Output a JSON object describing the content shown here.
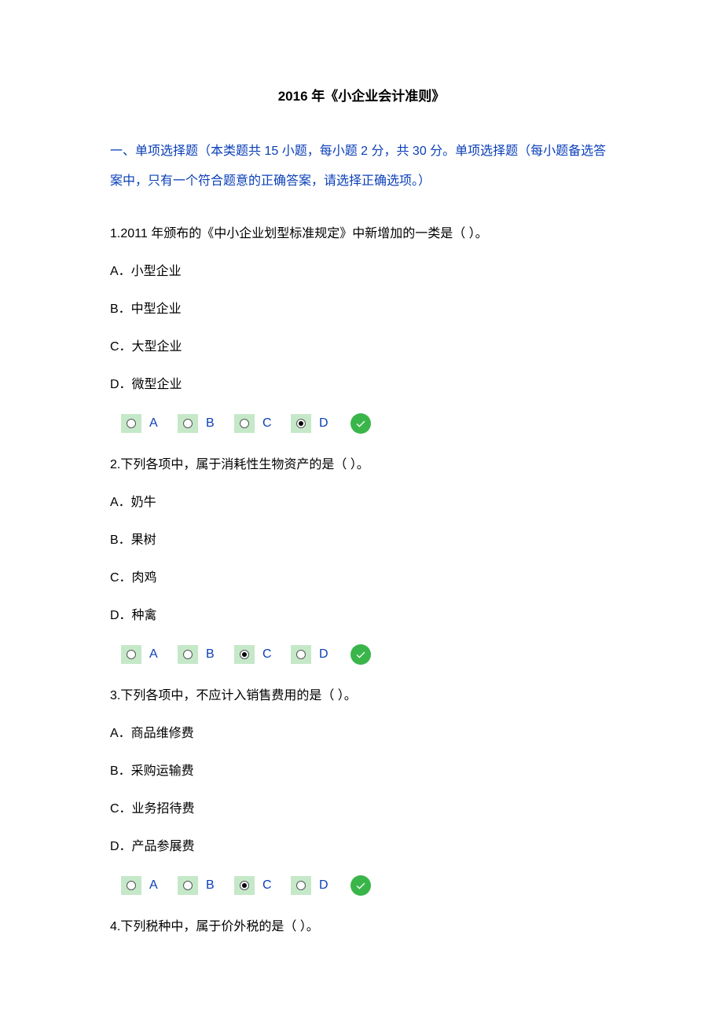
{
  "title": "2016 年《小企业会计准则》",
  "section_header": "一、单项选择题（本类题共 15 小题，每小题 2 分，共 30 分。单项选择题（每小题备选答案中，只有一个符合题意的正确答案，请选择正确选项。）",
  "answer_letters": [
    "A",
    "B",
    "C",
    "D"
  ],
  "colors": {
    "link_blue": "#0a3fb8",
    "radio_bg": "#c5e8c9",
    "check_green": "#3ab54a",
    "text_black": "#000000",
    "page_bg": "#ffffff"
  },
  "questions": [
    {
      "number": "1",
      "stem": "1.2011 年颁布的《中小企业划型标准规定》中新增加的一类是（ ）。",
      "options": [
        "A．小型企业",
        "B．中型企业",
        "C．大型企业",
        "D．微型企业"
      ],
      "selected_index": 3,
      "correct": true
    },
    {
      "number": "2",
      "stem": "2.下列各项中，属于消耗性生物资产的是（ ）。",
      "options": [
        "A．奶牛",
        "B．果树",
        "C．肉鸡",
        "D．种禽"
      ],
      "selected_index": 2,
      "correct": true
    },
    {
      "number": "3",
      "stem": "3.下列各项中，不应计入销售费用的是（ ）。",
      "options": [
        "A．商品维修费",
        "B．采购运输费",
        "C．业务招待费",
        "D．产品参展费"
      ],
      "selected_index": 2,
      "correct": true
    },
    {
      "number": "4",
      "stem": "4.下列税种中，属于价外税的是（ ）。",
      "options": [],
      "selected_index": null,
      "correct": null
    }
  ]
}
